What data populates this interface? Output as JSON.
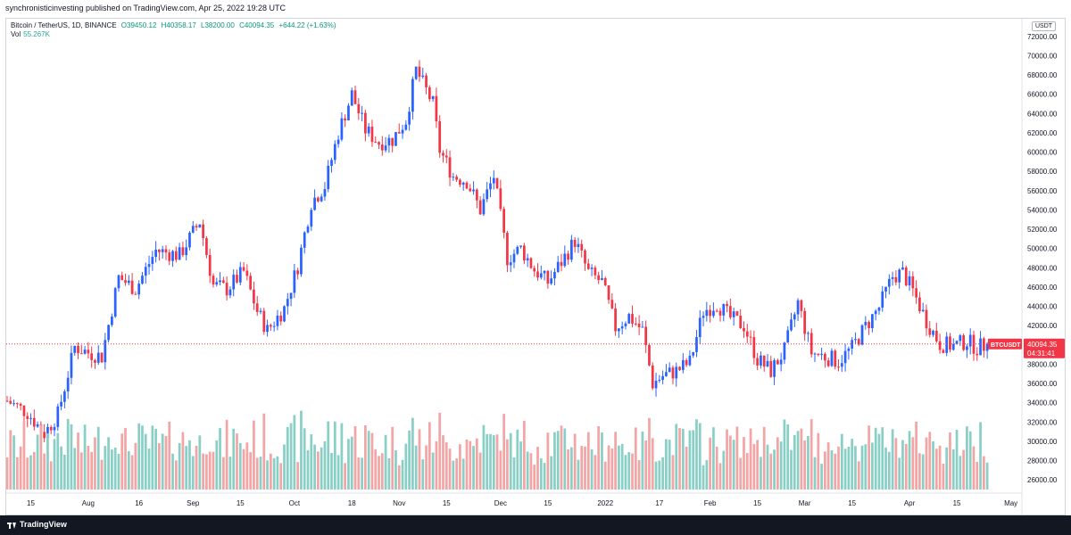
{
  "header": {
    "published": "synchronisticinvesting published on TradingView.com, Apr 25, 2022 19:28 UTC"
  },
  "legend": {
    "symbol": "Bitcoin / TetherUS, 1D, BINANCE",
    "open": "O39450.12",
    "high": "H40358.17",
    "low": "L38200.00",
    "close": "C40094.35",
    "change": "+644.22 (+1.63%)",
    "vol_label": "Vol",
    "vol_value": "55.267K"
  },
  "currency_badge": "USDT",
  "price_tag": {
    "symbol": "BTCUSDT",
    "price": "40094.35",
    "countdown": "04:31:41"
  },
  "footer": {
    "brand": "TradingView"
  },
  "colors": {
    "up": "#26a69a",
    "down": "#ef5350",
    "up_body": "#2962ff",
    "down_body": "#f23645",
    "vol_up": "#89cfc6",
    "vol_down": "#f3a5a5",
    "price_line": "#f23645"
  },
  "chart_data": {
    "type": "candlestick",
    "title": "Bitcoin / TetherUS, 1D, BINANCE",
    "ylim": [
      25000,
      73000
    ],
    "y_ticks": [
      26000,
      28000,
      30000,
      32000,
      34000,
      36000,
      38000,
      40000,
      42000,
      44000,
      46000,
      48000,
      50000,
      52000,
      54000,
      56000,
      58000,
      60000,
      62000,
      64000,
      66000,
      68000,
      70000,
      72000
    ],
    "y_tick_labels": [
      "26000.00",
      "28000.00",
      "30000.00",
      "32000.00",
      "34000.00",
      "36000.00",
      "38000.00",
      "40000.00",
      "42000.00",
      "44000.00",
      "46000.00",
      "48000.00",
      "50000.00",
      "52000.00",
      "54000.00",
      "56000.00",
      "58000.00",
      "60000.00",
      "62000.00",
      "64000.00",
      "66000.00",
      "68000.00",
      "70000.00",
      "72000.00"
    ],
    "x_labels": [
      {
        "label": "15",
        "day": 7
      },
      {
        "label": "Aug",
        "day": 24
      },
      {
        "label": "16",
        "day": 39
      },
      {
        "label": "Sep",
        "day": 55
      },
      {
        "label": "15",
        "day": 69
      },
      {
        "label": "Oct",
        "day": 85
      },
      {
        "label": "18",
        "day": 102
      },
      {
        "label": "Nov",
        "day": 116
      },
      {
        "label": "15",
        "day": 130
      },
      {
        "label": "Dec",
        "day": 146
      },
      {
        "label": "15",
        "day": 160
      },
      {
        "label": "2022",
        "day": 177
      },
      {
        "label": "17",
        "day": 193
      },
      {
        "label": "Feb",
        "day": 208
      },
      {
        "label": "15",
        "day": 222
      },
      {
        "label": "Mar",
        "day": 236
      },
      {
        "label": "15",
        "day": 250
      },
      {
        "label": "Apr",
        "day": 267
      },
      {
        "label": "15",
        "day": 281
      },
      {
        "label": "May",
        "day": 297
      }
    ],
    "last_price": 40094.35,
    "close_series": [
      {
        "day": 0,
        "close": 34200
      },
      {
        "day": 6,
        "close": 33000
      },
      {
        "day": 11,
        "close": 30800
      },
      {
        "day": 15,
        "close": 32800
      },
      {
        "day": 20,
        "close": 39800
      },
      {
        "day": 24,
        "close": 39200
      },
      {
        "day": 28,
        "close": 38800
      },
      {
        "day": 33,
        "close": 47000
      },
      {
        "day": 38,
        "close": 45800
      },
      {
        "day": 44,
        "close": 49800
      },
      {
        "day": 51,
        "close": 49300
      },
      {
        "day": 57,
        "close": 52800
      },
      {
        "day": 61,
        "close": 46200
      },
      {
        "day": 65,
        "close": 45800
      },
      {
        "day": 70,
        "close": 47600
      },
      {
        "day": 74,
        "close": 43500
      },
      {
        "day": 77,
        "close": 41500
      },
      {
        "day": 82,
        "close": 43800
      },
      {
        "day": 86,
        "close": 48200
      },
      {
        "day": 90,
        "close": 54800
      },
      {
        "day": 94,
        "close": 56500
      },
      {
        "day": 98,
        "close": 62000
      },
      {
        "day": 102,
        "close": 66000
      },
      {
        "day": 106,
        "close": 62300
      },
      {
        "day": 110,
        "close": 61000
      },
      {
        "day": 114,
        "close": 61300
      },
      {
        "day": 118,
        "close": 63300
      },
      {
        "day": 121,
        "close": 68500
      },
      {
        "day": 126,
        "close": 65000
      },
      {
        "day": 128,
        "close": 60200
      },
      {
        "day": 132,
        "close": 57500
      },
      {
        "day": 136,
        "close": 57000
      },
      {
        "day": 140,
        "close": 54000
      },
      {
        "day": 144,
        "close": 57500
      },
      {
        "day": 148,
        "close": 49000
      },
      {
        "day": 152,
        "close": 50000
      },
      {
        "day": 156,
        "close": 47800
      },
      {
        "day": 160,
        "close": 46500
      },
      {
        "day": 164,
        "close": 48600
      },
      {
        "day": 168,
        "close": 50800
      },
      {
        "day": 172,
        "close": 47500
      },
      {
        "day": 176,
        "close": 46500
      },
      {
        "day": 180,
        "close": 41800
      },
      {
        "day": 184,
        "close": 43000
      },
      {
        "day": 188,
        "close": 41500
      },
      {
        "day": 191,
        "close": 36000
      },
      {
        "day": 194,
        "close": 36800
      },
      {
        "day": 198,
        "close": 37300
      },
      {
        "day": 202,
        "close": 38200
      },
      {
        "day": 206,
        "close": 43500
      },
      {
        "day": 210,
        "close": 44300
      },
      {
        "day": 214,
        "close": 42800
      },
      {
        "day": 218,
        "close": 42000
      },
      {
        "day": 222,
        "close": 38500
      },
      {
        "day": 226,
        "close": 37300
      },
      {
        "day": 230,
        "close": 39400
      },
      {
        "day": 234,
        "close": 44400
      },
      {
        "day": 238,
        "close": 39200
      },
      {
        "day": 242,
        "close": 38800
      },
      {
        "day": 246,
        "close": 38300
      },
      {
        "day": 250,
        "close": 39700
      },
      {
        "day": 254,
        "close": 41900
      },
      {
        "day": 258,
        "close": 43900
      },
      {
        "day": 262,
        "close": 47100
      },
      {
        "day": 265,
        "close": 47500
      },
      {
        "day": 268,
        "close": 45600
      },
      {
        "day": 272,
        "close": 42500
      },
      {
        "day": 276,
        "close": 40100
      },
      {
        "day": 280,
        "close": 39900
      },
      {
        "day": 284,
        "close": 40400
      },
      {
        "day": 287,
        "close": 39700
      },
      {
        "day": 290,
        "close": 40094
      }
    ]
  }
}
